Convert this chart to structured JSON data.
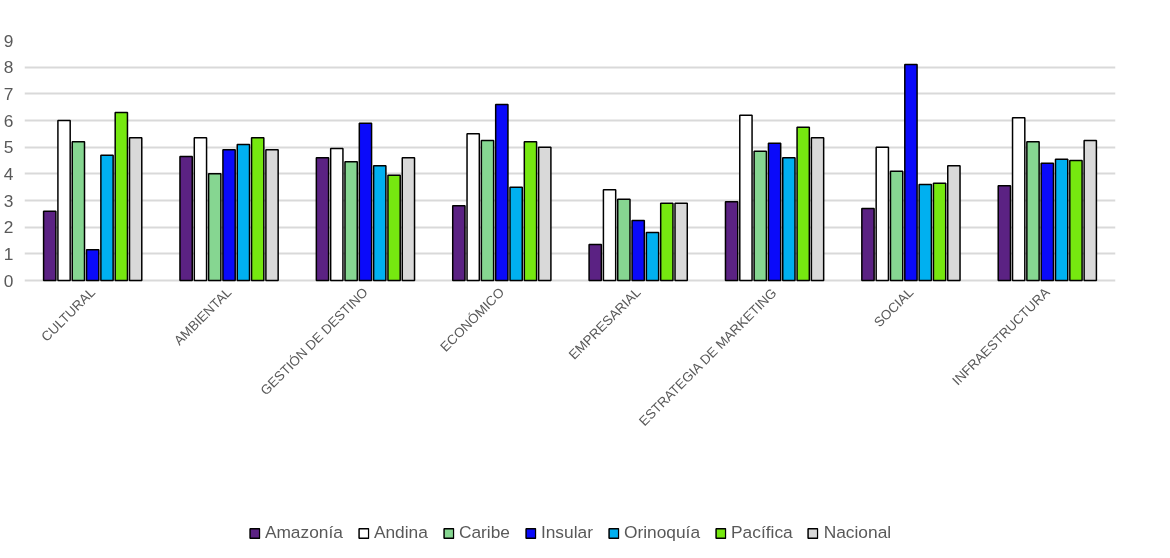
{
  "chart_data": {
    "type": "bar",
    "categories": [
      "CULTURAL",
      "AMBIENTAL",
      "GESTIÓN DE DESTINO",
      "ECONÓMICO",
      "EMPRESARIAL",
      "ESTRATEGIA DE MARKETING",
      "SOCIAL",
      "INFRAESTRUCTURA"
    ],
    "series": [
      {
        "name": "Amazonía",
        "color": "#5b2283",
        "values": [
          2.6,
          4.65,
          4.6,
          2.8,
          1.35,
          2.95,
          2.7,
          3.55
        ]
      },
      {
        "name": "Andina",
        "color": "#ffffff",
        "values": [
          6.0,
          5.35,
          4.95,
          5.5,
          3.4,
          6.2,
          5.0,
          6.1
        ]
      },
      {
        "name": "Caribe",
        "color": "#86d691",
        "values": [
          5.2,
          4.0,
          4.45,
          5.25,
          3.05,
          4.85,
          4.1,
          5.2
        ]
      },
      {
        "name": "Insular",
        "color": "#0a0afa",
        "values": [
          1.15,
          4.9,
          5.9,
          6.6,
          2.25,
          5.15,
          8.1,
          4.4
        ]
      },
      {
        "name": "Orinoquía",
        "color": "#00b0f0",
        "values": [
          4.7,
          5.1,
          4.3,
          3.5,
          1.8,
          4.6,
          3.6,
          4.55
        ]
      },
      {
        "name": "Pacífica",
        "color": "#76e810",
        "values": [
          6.3,
          5.35,
          3.95,
          5.2,
          2.9,
          5.75,
          3.65,
          4.5
        ]
      },
      {
        "name": "Nacional",
        "color": "#d9d9d9",
        "values": [
          5.35,
          4.9,
          4.6,
          5.0,
          2.9,
          5.35,
          4.3,
          5.25
        ]
      }
    ],
    "ylim": [
      0,
      9
    ],
    "yticks": [
      0,
      1,
      2,
      3,
      4,
      5,
      6,
      7,
      8,
      9
    ],
    "grid": "y",
    "legend": "bottom"
  }
}
